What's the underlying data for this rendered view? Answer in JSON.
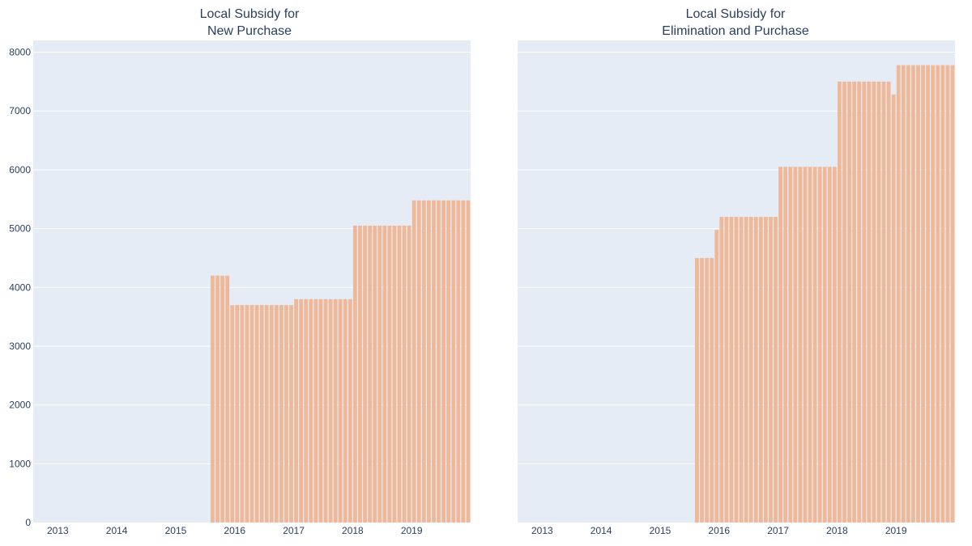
{
  "colors": {
    "bar": "#efb999",
    "plot_background": "#e5ecf6",
    "grid": "#ffffff",
    "text": "#2a3f5f"
  },
  "chart_data": [
    {
      "type": "bar",
      "title": [
        "Local Subsidy for",
        "New Purchase"
      ],
      "xlabel": "",
      "ylabel": "",
      "x_range": [
        "2012-08",
        "2019-12"
      ],
      "ylim": [
        0,
        8200
      ],
      "x_ticks": [
        "2013",
        "2014",
        "2015",
        "2016",
        "2017",
        "2018",
        "2019"
      ],
      "y_ticks": [
        0,
        1000,
        2000,
        3000,
        4000,
        5000,
        6000,
        7000,
        8000
      ],
      "grid": true,
      "legend": "none",
      "x": [
        "2015-08",
        "2015-09",
        "2015-10",
        "2015-11",
        "2015-12",
        "2016-01",
        "2016-02",
        "2016-03",
        "2016-04",
        "2016-05",
        "2016-06",
        "2016-07",
        "2016-08",
        "2016-09",
        "2016-10",
        "2016-11",
        "2016-12",
        "2017-01",
        "2017-02",
        "2017-03",
        "2017-04",
        "2017-05",
        "2017-06",
        "2017-07",
        "2017-08",
        "2017-09",
        "2017-10",
        "2017-11",
        "2017-12",
        "2018-01",
        "2018-02",
        "2018-03",
        "2018-04",
        "2018-05",
        "2018-06",
        "2018-07",
        "2018-08",
        "2018-09",
        "2018-10",
        "2018-11",
        "2018-12",
        "2019-01",
        "2019-02",
        "2019-03",
        "2019-04",
        "2019-05",
        "2019-06",
        "2019-07",
        "2019-08",
        "2019-09",
        "2019-10",
        "2019-11",
        "2019-12"
      ],
      "values": [
        4200,
        4200,
        4200,
        4200,
        3700,
        3700,
        3700,
        3700,
        3700,
        3700,
        3700,
        3700,
        3700,
        3700,
        3700,
        3700,
        3700,
        3800,
        3800,
        3800,
        3800,
        3800,
        3800,
        3800,
        3800,
        3800,
        3800,
        3800,
        3800,
        5050,
        5050,
        5050,
        5050,
        5050,
        5050,
        5050,
        5050,
        5050,
        5050,
        5050,
        5050,
        5480,
        5480,
        5480,
        5480,
        5480,
        5480,
        5480,
        5480,
        5480,
        5480,
        5480,
        5480
      ]
    },
    {
      "type": "bar",
      "title": [
        "Local Subsidy for",
        "Elimination and Purchase"
      ],
      "xlabel": "",
      "ylabel": "",
      "x_range": [
        "2012-08",
        "2019-12"
      ],
      "ylim": [
        0,
        8200
      ],
      "x_ticks": [
        "2013",
        "2014",
        "2015",
        "2016",
        "2017",
        "2018",
        "2019"
      ],
      "y_ticks": [
        0,
        1000,
        2000,
        3000,
        4000,
        5000,
        6000,
        7000,
        8000
      ],
      "grid": true,
      "legend": "none",
      "x": [
        "2015-08",
        "2015-09",
        "2015-10",
        "2015-11",
        "2015-12",
        "2016-01",
        "2016-02",
        "2016-03",
        "2016-04",
        "2016-05",
        "2016-06",
        "2016-07",
        "2016-08",
        "2016-09",
        "2016-10",
        "2016-11",
        "2016-12",
        "2017-01",
        "2017-02",
        "2017-03",
        "2017-04",
        "2017-05",
        "2017-06",
        "2017-07",
        "2017-08",
        "2017-09",
        "2017-10",
        "2017-11",
        "2017-12",
        "2018-01",
        "2018-02",
        "2018-03",
        "2018-04",
        "2018-05",
        "2018-06",
        "2018-07",
        "2018-08",
        "2018-09",
        "2018-10",
        "2018-11",
        "2018-12",
        "2019-01",
        "2019-02",
        "2019-03",
        "2019-04",
        "2019-05",
        "2019-06",
        "2019-07",
        "2019-08",
        "2019-09",
        "2019-10",
        "2019-11",
        "2019-12"
      ],
      "values": [
        4500,
        4500,
        4500,
        4500,
        4980,
        5200,
        5200,
        5200,
        5200,
        5200,
        5200,
        5200,
        5200,
        5200,
        5200,
        5200,
        5200,
        6050,
        6050,
        6050,
        6050,
        6050,
        6050,
        6050,
        6050,
        6050,
        6050,
        6050,
        6050,
        7500,
        7500,
        7500,
        7500,
        7500,
        7500,
        7500,
        7500,
        7500,
        7500,
        7500,
        7280,
        7780,
        7780,
        7780,
        7780,
        7780,
        7780,
        7780,
        7780,
        7780,
        7780,
        7780,
        7780
      ]
    }
  ]
}
